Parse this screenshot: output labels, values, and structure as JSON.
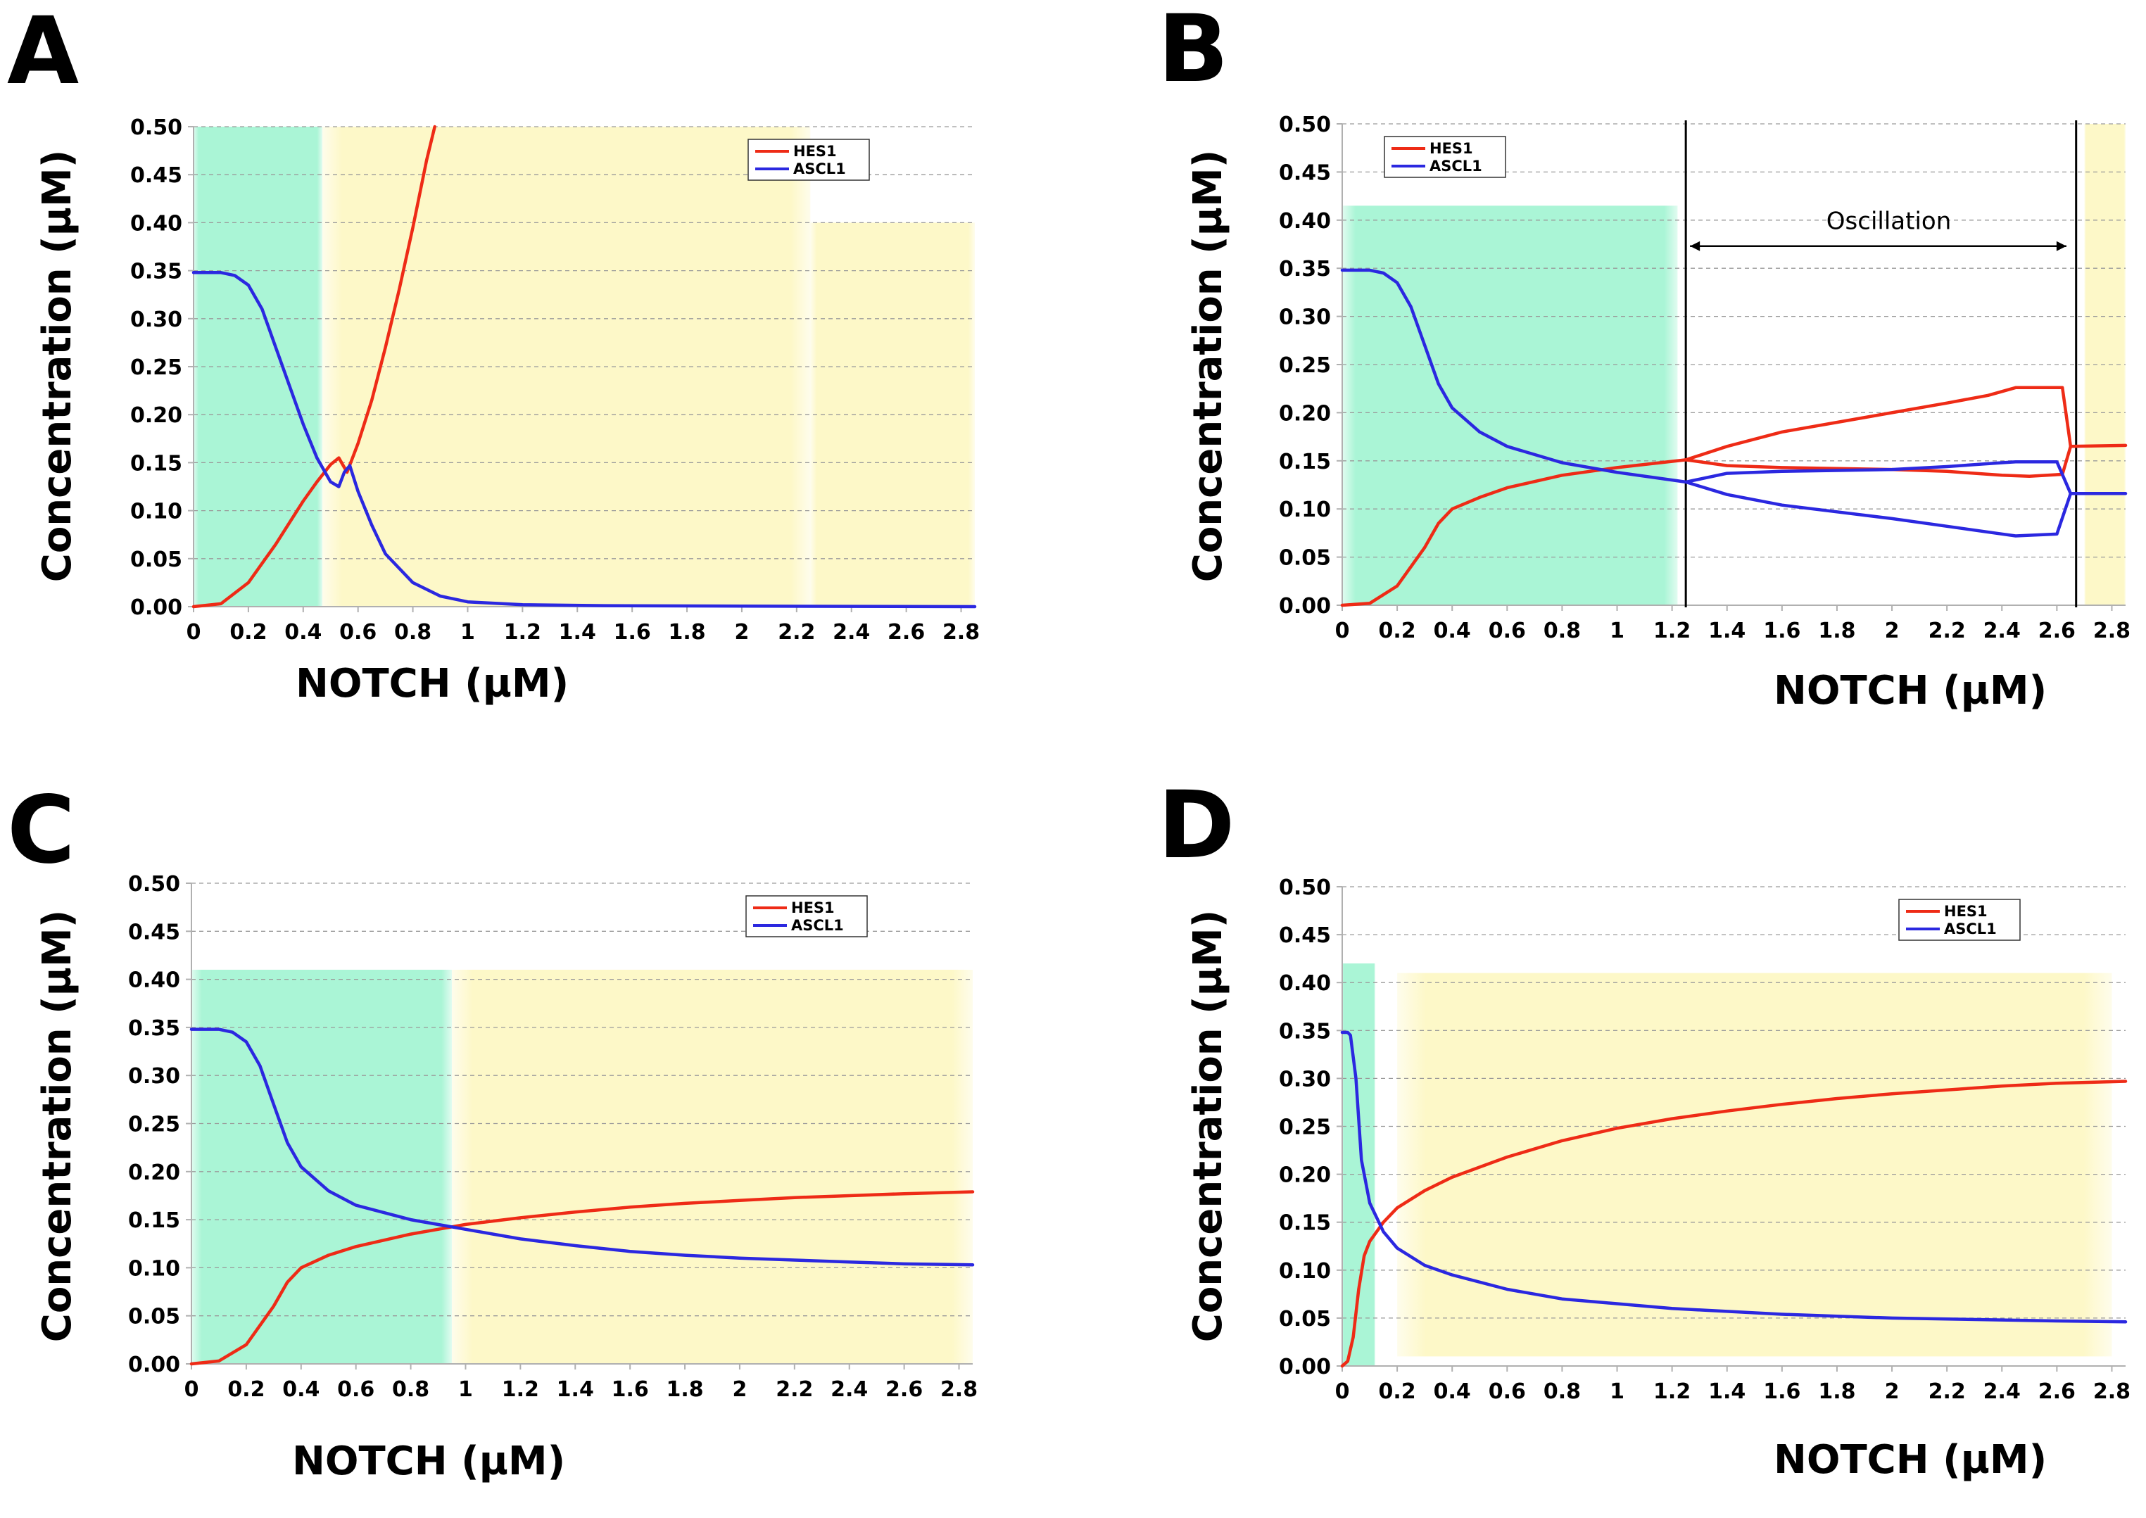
{
  "chart_data": [
    {
      "panel": "A",
      "type": "line",
      "xlabel": "NOTCH (µM)",
      "ylabel": "Concentration (µM)",
      "xlim": [
        0,
        2.85
      ],
      "ylim": [
        0,
        0.5
      ],
      "x_ticks": [
        "0",
        "0.2",
        "0.4",
        "0.6",
        "0.8",
        "1",
        "1.2",
        "1.4",
        "1.6",
        "1.8",
        "2",
        "2.2",
        "2.4",
        "2.6",
        "2.8"
      ],
      "y_ticks": [
        "0.00",
        "0.05",
        "0.10",
        "0.15",
        "0.20",
        "0.25",
        "0.30",
        "0.35",
        "0.40",
        "0.45",
        "0.50"
      ],
      "grid": "horizontal dashed",
      "legend_position": "top-right",
      "shaded_regions": [
        {
          "color": "#aaf5d6",
          "x": [
            0,
            0.47
          ],
          "y": [
            0,
            0.5
          ]
        },
        {
          "color": "#fdf8c8",
          "x": [
            0.47,
            2.25
          ],
          "y": [
            0,
            0.5
          ]
        },
        {
          "color": "#fdf8c8",
          "x": [
            2.25,
            2.85
          ],
          "y": [
            0,
            0.4
          ]
        }
      ],
      "series": [
        {
          "name": "HES1",
          "color": "#ee2b16",
          "x": [
            0,
            0.1,
            0.2,
            0.3,
            0.4,
            0.45,
            0.5,
            0.53,
            0.56,
            0.6,
            0.65,
            0.7,
            0.75,
            0.8,
            0.85,
            0.88
          ],
          "y": [
            0,
            0.003,
            0.025,
            0.065,
            0.11,
            0.13,
            0.148,
            0.155,
            0.14,
            0.17,
            0.215,
            0.27,
            0.33,
            0.395,
            0.465,
            0.5
          ]
        },
        {
          "name": "ASCL1",
          "color": "#2b28e0",
          "x": [
            0,
            0.1,
            0.15,
            0.2,
            0.25,
            0.3,
            0.35,
            0.4,
            0.45,
            0.5,
            0.53,
            0.55,
            0.57,
            0.6,
            0.65,
            0.7,
            0.8,
            0.9,
            1.0,
            1.2,
            1.5,
            2.0,
            2.85
          ],
          "y": [
            0.348,
            0.348,
            0.345,
            0.335,
            0.31,
            0.27,
            0.23,
            0.19,
            0.155,
            0.13,
            0.125,
            0.14,
            0.147,
            0.12,
            0.085,
            0.055,
            0.025,
            0.011,
            0.005,
            0.002,
            0.001,
            0.0005,
            0
          ]
        }
      ]
    },
    {
      "panel": "B",
      "type": "line",
      "xlabel": "NOTCH (µM)",
      "ylabel": "Concentration (µM)",
      "xlim": [
        0,
        2.85
      ],
      "ylim": [
        0,
        0.5
      ],
      "x_ticks": [
        "0",
        "0.2",
        "0.4",
        "0.6",
        "0.8",
        "1",
        "1.2",
        "1.4",
        "1.6",
        "1.8",
        "2",
        "2.2",
        "2.4",
        "2.6",
        "2.8"
      ],
      "y_ticks": [
        "0.00",
        "0.05",
        "0.10",
        "0.15",
        "0.20",
        "0.25",
        "0.30",
        "0.35",
        "0.40",
        "0.45",
        "0.50"
      ],
      "grid": "horizontal dashed",
      "legend_position": "top-left",
      "shaded_regions": [
        {
          "color": "#aaf5d6",
          "x": [
            0,
            1.22
          ],
          "y": [
            0,
            0.415
          ]
        },
        {
          "color": "#fdf8c8",
          "x": [
            2.7,
            2.85
          ],
          "y": [
            0,
            0.5
          ]
        }
      ],
      "vertical_lines": [
        1.25,
        2.67
      ],
      "annotation": {
        "text": "Oscillation",
        "x_range": [
          1.25,
          2.65
        ],
        "y": 0.373
      },
      "series": [
        {
          "name": "HES1",
          "color": "#ee2b16",
          "x": [
            0,
            0.1,
            0.2,
            0.3,
            0.35,
            0.4,
            0.5,
            0.6,
            0.8,
            1.0,
            1.25
          ],
          "y": [
            0,
            0.002,
            0.02,
            0.06,
            0.085,
            0.1,
            0.112,
            0.122,
            0.135,
            0.143,
            0.151
          ]
        },
        {
          "name": "HES1 max",
          "color": "#ee2b16",
          "x": [
            1.25,
            1.4,
            1.6,
            1.8,
            2.0,
            2.2,
            2.35,
            2.45,
            2.55,
            2.62,
            2.65,
            2.85
          ],
          "y": [
            0.151,
            0.165,
            0.18,
            0.19,
            0.2,
            0.21,
            0.218,
            0.226,
            0.226,
            0.226,
            0.165,
            0.166
          ]
        },
        {
          "name": "HES1 min",
          "color": "#ee2b16",
          "x": [
            1.25,
            1.4,
            1.6,
            1.8,
            2.0,
            2.2,
            2.4,
            2.5,
            2.62,
            2.65
          ],
          "y": [
            0.151,
            0.145,
            0.143,
            0.142,
            0.141,
            0.139,
            0.135,
            0.134,
            0.136,
            0.165
          ]
        },
        {
          "name": "ASCL1",
          "color": "#2b28e0",
          "x": [
            0,
            0.1,
            0.15,
            0.2,
            0.25,
            0.3,
            0.35,
            0.4,
            0.5,
            0.6,
            0.8,
            1.0,
            1.25
          ],
          "y": [
            0.348,
            0.348,
            0.345,
            0.335,
            0.31,
            0.27,
            0.23,
            0.205,
            0.18,
            0.165,
            0.148,
            0.138,
            0.128
          ]
        },
        {
          "name": "ASCL1 max",
          "color": "#2b28e0",
          "x": [
            1.25,
            1.4,
            1.6,
            1.8,
            2.0,
            2.2,
            2.4,
            2.45,
            2.6,
            2.65,
            2.85
          ],
          "y": [
            0.128,
            0.137,
            0.139,
            0.14,
            0.141,
            0.144,
            0.148,
            0.149,
            0.149,
            0.116,
            0.116
          ]
        },
        {
          "name": "ASCL1 min",
          "color": "#2b28e0",
          "x": [
            1.25,
            1.4,
            1.6,
            1.8,
            2.0,
            2.2,
            2.4,
            2.45,
            2.6,
            2.65
          ],
          "y": [
            0.128,
            0.115,
            0.104,
            0.097,
            0.09,
            0.082,
            0.074,
            0.072,
            0.074,
            0.116
          ]
        }
      ]
    },
    {
      "panel": "C",
      "type": "line",
      "xlabel": "NOTCH (µM)",
      "ylabel": "Concentration (µM)",
      "xlim": [
        0,
        2.85
      ],
      "ylim": [
        0,
        0.5
      ],
      "x_ticks": [
        "0",
        "0.2",
        "0.4",
        "0.6",
        "0.8",
        "1",
        "1.2",
        "1.4",
        "1.6",
        "1.8",
        "2",
        "2.2",
        "2.4",
        "2.6",
        "2.8"
      ],
      "y_ticks": [
        "0.00",
        "0.05",
        "0.10",
        "0.15",
        "0.20",
        "0.25",
        "0.30",
        "0.35",
        "0.40",
        "0.45",
        "0.50"
      ],
      "grid": "horizontal dashed",
      "legend_position": "top-right",
      "shaded_regions": [
        {
          "color": "#aaf5d6",
          "x": [
            0,
            0.95
          ],
          "y": [
            0,
            0.41
          ]
        },
        {
          "color": "#fdf8c8",
          "x": [
            0.95,
            2.85
          ],
          "y": [
            0,
            0.41
          ]
        }
      ],
      "series": [
        {
          "name": "HES1",
          "color": "#ee2b16",
          "x": [
            0,
            0.1,
            0.2,
            0.3,
            0.35,
            0.4,
            0.5,
            0.6,
            0.8,
            1.0,
            1.2,
            1.4,
            1.6,
            1.8,
            2.0,
            2.2,
            2.4,
            2.6,
            2.85
          ],
          "y": [
            0,
            0.003,
            0.02,
            0.06,
            0.085,
            0.1,
            0.113,
            0.122,
            0.135,
            0.145,
            0.152,
            0.158,
            0.163,
            0.167,
            0.17,
            0.173,
            0.175,
            0.177,
            0.179
          ]
        },
        {
          "name": "ASCL1",
          "color": "#2b28e0",
          "x": [
            0,
            0.1,
            0.15,
            0.2,
            0.25,
            0.3,
            0.35,
            0.4,
            0.5,
            0.6,
            0.8,
            1.0,
            1.2,
            1.4,
            1.6,
            1.8,
            2.0,
            2.2,
            2.4,
            2.6,
            2.85
          ],
          "y": [
            0.348,
            0.348,
            0.345,
            0.335,
            0.31,
            0.27,
            0.23,
            0.205,
            0.18,
            0.165,
            0.15,
            0.14,
            0.13,
            0.123,
            0.117,
            0.113,
            0.11,
            0.108,
            0.106,
            0.104,
            0.103
          ]
        }
      ]
    },
    {
      "panel": "D",
      "type": "line",
      "xlabel": "NOTCH (µM)",
      "ylabel": "Concentration (µM)",
      "xlim": [
        0,
        2.85
      ],
      "ylim": [
        0,
        0.5
      ],
      "x_ticks": [
        "0",
        "0.2",
        "0.4",
        "0.6",
        "0.8",
        "1",
        "1.2",
        "1.4",
        "1.6",
        "1.8",
        "2",
        "2.2",
        "2.4",
        "2.6",
        "2.8"
      ],
      "y_ticks": [
        "0.00",
        "0.05",
        "0.10",
        "0.15",
        "0.20",
        "0.25",
        "0.30",
        "0.35",
        "0.40",
        "0.45",
        "0.50"
      ],
      "grid": "horizontal dashed",
      "legend_position": "top-right",
      "shaded_regions": [
        {
          "color": "#aaf5d6",
          "x": [
            0,
            0.12
          ],
          "y": [
            0,
            0.42
          ]
        },
        {
          "color": "#fdf8c8",
          "x": [
            0.2,
            2.8
          ],
          "y": [
            0.01,
            0.41
          ]
        }
      ],
      "series": [
        {
          "name": "HES1",
          "color": "#ee2b16",
          "x": [
            0,
            0.02,
            0.04,
            0.06,
            0.08,
            0.1,
            0.15,
            0.2,
            0.3,
            0.4,
            0.6,
            0.8,
            1.0,
            1.2,
            1.4,
            1.6,
            1.8,
            2.0,
            2.2,
            2.4,
            2.6,
            2.85
          ],
          "y": [
            0,
            0.005,
            0.03,
            0.08,
            0.115,
            0.13,
            0.15,
            0.165,
            0.183,
            0.197,
            0.218,
            0.235,
            0.248,
            0.258,
            0.266,
            0.273,
            0.279,
            0.284,
            0.288,
            0.292,
            0.295,
            0.297
          ]
        },
        {
          "name": "ASCL1",
          "color": "#2b28e0",
          "x": [
            0,
            0.02,
            0.03,
            0.05,
            0.07,
            0.1,
            0.15,
            0.2,
            0.3,
            0.4,
            0.6,
            0.8,
            1.0,
            1.2,
            1.4,
            1.6,
            1.8,
            2.0,
            2.2,
            2.4,
            2.6,
            2.85
          ],
          "y": [
            0.348,
            0.348,
            0.345,
            0.3,
            0.215,
            0.17,
            0.14,
            0.123,
            0.105,
            0.095,
            0.08,
            0.07,
            0.065,
            0.06,
            0.057,
            0.054,
            0.052,
            0.05,
            0.049,
            0.048,
            0.047,
            0.046
          ]
        }
      ]
    }
  ]
}
